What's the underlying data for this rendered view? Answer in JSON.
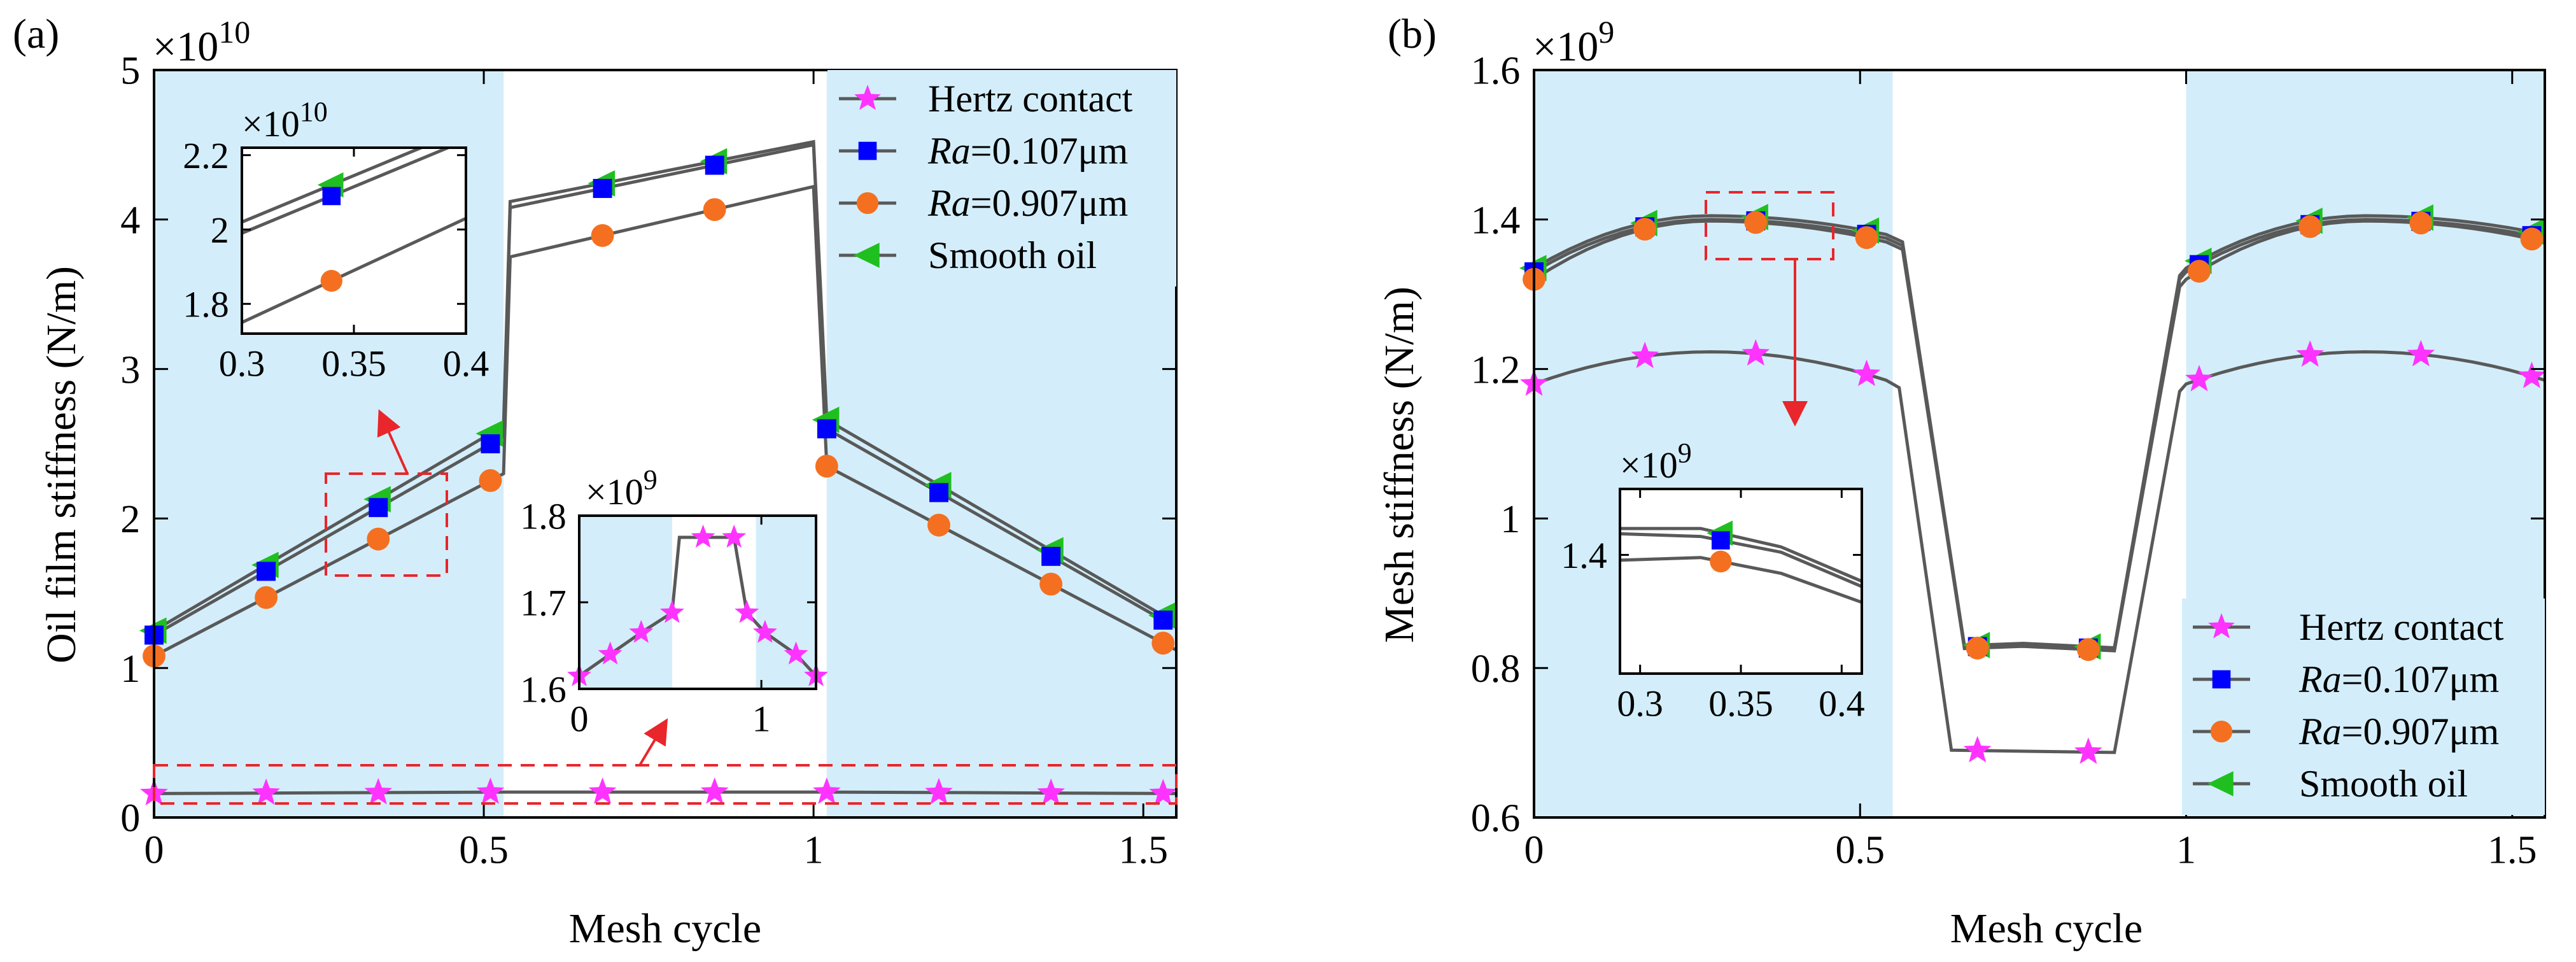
{
  "colors": {
    "shade": "#d3eefa",
    "line": "#595959",
    "hertz": "#ff33ff",
    "ra107": "#0000ff",
    "ra907": "#f47020",
    "smooth": "#1fbf1f",
    "dashed": "#e8262b",
    "arrow": "#e8262b"
  },
  "legend": {
    "hertz": "Hertz contact",
    "ra107_italic": "Ra",
    "ra107_rest": "=0.107μm",
    "ra907_italic": "Ra",
    "ra907_rest": "=0.907μm",
    "smooth": "Smooth oil"
  },
  "chart_data": [
    {
      "panel_label": "(a)",
      "type": "line",
      "xlabel": "Mesh cycle",
      "ylabel": "Oil film stiffness (N/m)",
      "exponent_base": "×10",
      "exponent_power": "10",
      "xlim": [
        0,
        1.55
      ],
      "ylim": [
        0,
        5
      ],
      "xticks": [
        0,
        0.5,
        1,
        1.5
      ],
      "xtick_labels": [
        "0",
        "0.5",
        "1",
        "1.5"
      ],
      "yticks": [
        0,
        1,
        2,
        3,
        4,
        5
      ],
      "ytick_labels": [
        "0",
        "1",
        "2",
        "3",
        "4",
        "5"
      ],
      "shaded_x": [
        [
          0,
          0.53
        ],
        [
          1.02,
          1.55
        ]
      ],
      "legend_position": "top-right",
      "series": [
        {
          "key": "smooth",
          "marker": "triangle-left",
          "x": [
            0,
            0.53,
            0.54,
            1.0,
            1.02,
            1.55
          ],
          "y": [
            1.25,
            2.62,
            4.12,
            4.52,
            2.66,
            1.3
          ]
        },
        {
          "key": "ra107",
          "marker": "square",
          "x": [
            0,
            0.53,
            0.54,
            1.0,
            1.02,
            1.55
          ],
          "y": [
            1.22,
            2.55,
            4.08,
            4.5,
            2.6,
            1.27
          ]
        },
        {
          "key": "ra907",
          "marker": "circle",
          "x": [
            0,
            0.53,
            0.54,
            1.0,
            1.02,
            1.55
          ],
          "y": [
            1.08,
            2.3,
            3.75,
            4.22,
            2.35,
            1.12
          ]
        },
        {
          "key": "hertz",
          "marker": "star",
          "x": [
            0,
            0.53,
            1.02,
            1.55
          ],
          "y": [
            0.16,
            0.17,
            0.17,
            0.16
          ]
        }
      ],
      "marker_x": [
        0,
        0.17,
        0.34,
        0.51,
        0.68,
        0.85,
        1.02,
        1.19,
        1.36,
        1.53
      ],
      "insets": [
        {
          "exponent_base": "×10",
          "exponent_power": "10",
          "xlim": [
            0.3,
            0.4
          ],
          "ylim": [
            1.72,
            2.22
          ],
          "xticks": [
            0.3,
            0.35,
            0.4
          ],
          "xtick_labels": [
            "0.3",
            "0.35",
            "0.4"
          ],
          "yticks": [
            1.8,
            2.0,
            2.2
          ],
          "ytick_labels": [
            "1.8",
            "2",
            "2.2"
          ],
          "series": [
            {
              "key": "smooth",
              "x": [
                0.3,
                0.4
              ],
              "y": [
                2.02,
                2.27
              ],
              "marker_x": [
                0.34
              ]
            },
            {
              "key": "ra107",
              "x": [
                0.3,
                0.4
              ],
              "y": [
                1.99,
                2.24
              ],
              "marker_x": [
                0.34
              ]
            },
            {
              "key": "ra907",
              "x": [
                0.3,
                0.4
              ],
              "y": [
                1.75,
                2.03
              ],
              "marker_x": [
                0.34
              ]
            }
          ]
        },
        {
          "exponent_base": "×10",
          "exponent_power": "9",
          "xlim": [
            0,
            1.3
          ],
          "ylim": [
            1.6,
            1.8
          ],
          "xticks": [
            0,
            1
          ],
          "xtick_labels": [
            "0",
            "1"
          ],
          "yticks": [
            1.6,
            1.7,
            1.8
          ],
          "ytick_labels": [
            "1.6",
            "1.7",
            "1.8"
          ],
          "series": [
            {
              "key": "hertz",
              "x": [
                0,
                0.17,
                0.34,
                0.51,
                0.55,
                0.68,
                0.85,
                0.92,
                1.02,
                1.19,
                1.3
              ],
              "y": [
                1.615,
                1.64,
                1.665,
                1.688,
                1.775,
                1.775,
                1.775,
                1.688,
                1.665,
                1.64,
                1.615
              ],
              "marker_x": [
                0,
                0.17,
                0.34,
                0.51,
                0.68,
                0.85,
                0.92,
                1.02,
                1.19,
                1.3
              ]
            }
          ]
        }
      ]
    },
    {
      "panel_label": "(b)",
      "type": "line",
      "xlabel": "Mesh cycle",
      "ylabel": "Mesh stiffness (N/m)",
      "exponent_base": "×10",
      "exponent_power": "9",
      "xlim": [
        0,
        1.55
      ],
      "ylim": [
        0.6,
        1.6
      ],
      "xticks": [
        0,
        0.5,
        1,
        1.5
      ],
      "xtick_labels": [
        "0",
        "0.5",
        "1",
        "1.5"
      ],
      "yticks": [
        0.6,
        0.8,
        1.0,
        1.2,
        1.4,
        1.6
      ],
      "ytick_labels": [
        "0.6",
        "0.8",
        "1",
        "1.2",
        "1.4",
        "1.6"
      ],
      "shaded_x": [
        [
          0,
          0.55
        ],
        [
          1.0,
          1.55
        ]
      ],
      "legend_position": "bottom-right",
      "series": [
        {
          "key": "smooth",
          "marker": "triangle-left",
          "y_double": [
            1.335,
            1.405,
            1.38,
            0.83,
            1.335,
            1.405,
            1.38
          ]
        },
        {
          "key": "ra107",
          "marker": "square",
          "y_double": [
            1.33,
            1.4,
            1.375,
            0.828,
            1.33,
            1.4,
            1.375
          ]
        },
        {
          "key": "ra907",
          "marker": "circle",
          "y_double": [
            1.32,
            1.398,
            1.37,
            0.826,
            1.32,
            1.398,
            1.37
          ]
        },
        {
          "key": "hertz",
          "marker": "star",
          "y_single": [
            1.18,
            1.223,
            1.185,
            0.69,
            1.18,
            1.223,
            1.185
          ]
        }
      ],
      "marker_x": [
        0,
        0.17,
        0.34,
        0.51,
        0.68,
        0.85,
        1.02,
        1.19,
        1.36,
        1.53
      ],
      "insets": [
        {
          "exponent_base": "×10",
          "exponent_power": "9",
          "xlim": [
            0.29,
            0.41
          ],
          "ylim": [
            1.355,
            1.425
          ],
          "xticks": [
            0.3,
            0.35,
            0.4
          ],
          "xtick_labels": [
            "0.3",
            "0.35",
            "0.4"
          ],
          "yticks": [
            1.4
          ],
          "ytick_labels": [
            "1.4"
          ],
          "series": [
            {
              "key": "smooth",
              "x": [
                0.29,
                0.33,
                0.37,
                0.41
              ],
              "y": [
                1.41,
                1.41,
                1.403,
                1.39
              ],
              "marker_x": [
                0.34
              ]
            },
            {
              "key": "ra107",
              "x": [
                0.29,
                0.33,
                0.37,
                0.41
              ],
              "y": [
                1.408,
                1.407,
                1.401,
                1.388
              ],
              "marker_x": [
                0.34
              ]
            },
            {
              "key": "ra907",
              "x": [
                0.29,
                0.33,
                0.37,
                0.41
              ],
              "y": [
                1.398,
                1.399,
                1.393,
                1.382
              ],
              "marker_x": [
                0.34
              ]
            }
          ]
        }
      ]
    }
  ]
}
